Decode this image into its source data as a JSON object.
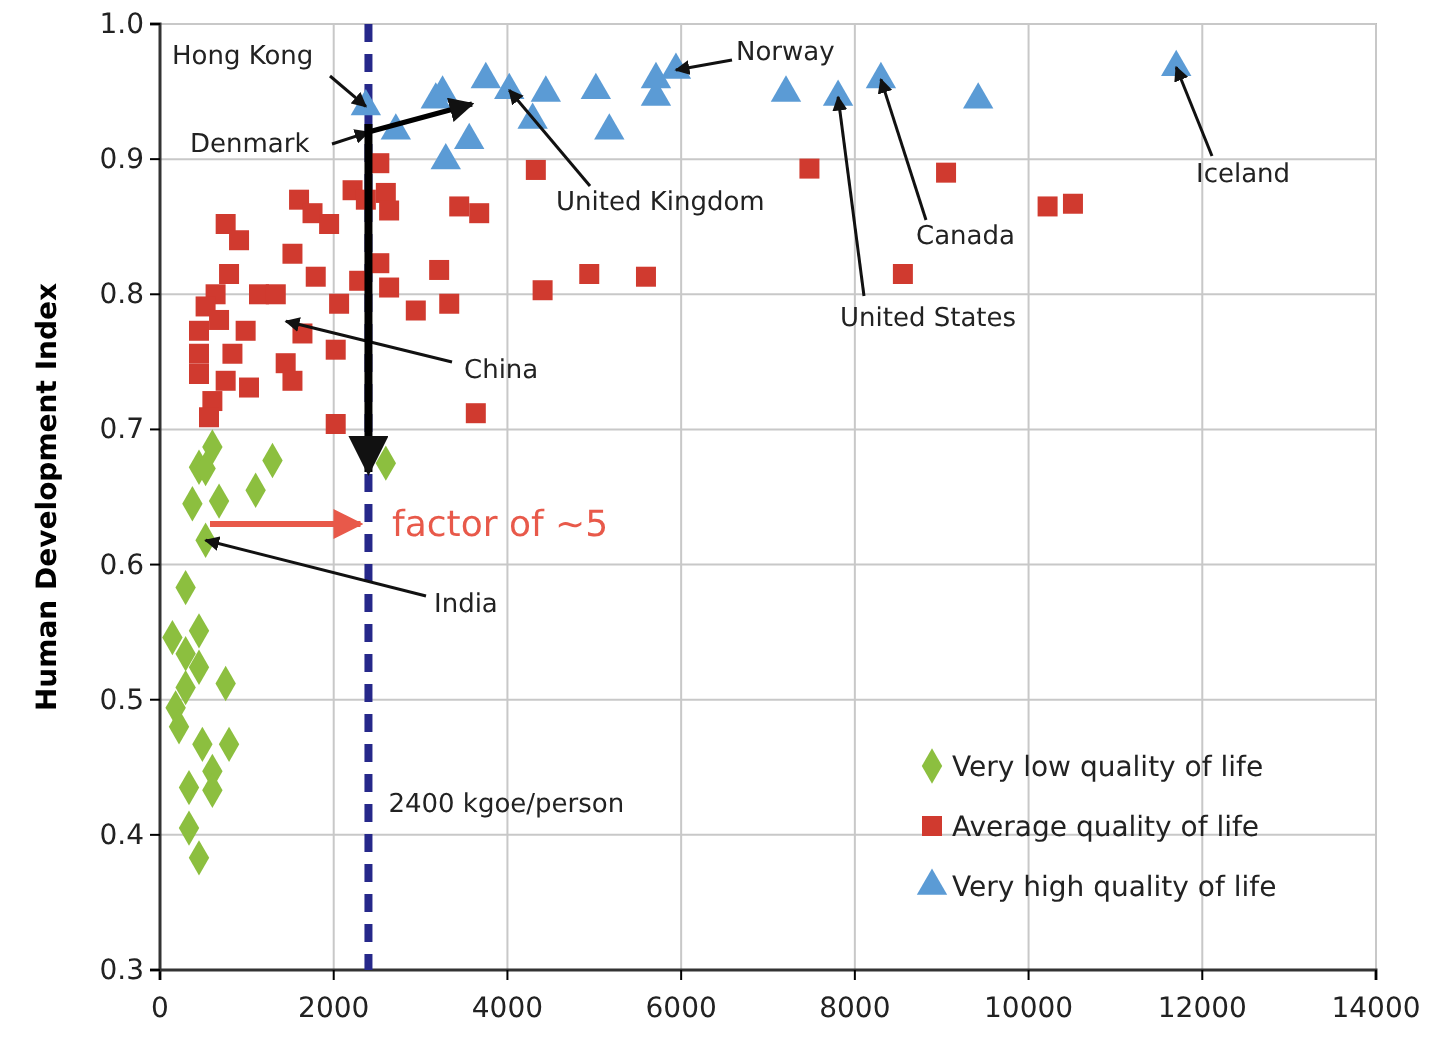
{
  "chart_data": {
    "type": "scatter",
    "ylabel": "Human Development Index",
    "xlim": [
      0,
      14000
    ],
    "xticks": [
      0,
      2000,
      4000,
      6000,
      8000,
      10000,
      12000,
      14000
    ],
    "ylim": [
      0.3,
      1.0
    ],
    "yticks": [
      {
        "value": 0.3,
        "label": "0.3"
      },
      {
        "value": 0.4,
        "label": "0.4"
      },
      {
        "value": 0.5,
        "label": "0.5"
      },
      {
        "value": 0.6,
        "label": "0.6"
      },
      {
        "value": 0.7,
        "label": "0.7"
      },
      {
        "value": 0.8,
        "label": "0.8"
      },
      {
        "value": 0.9,
        "label": "0.9"
      },
      {
        "value": 1.0,
        "label": "1.0"
      }
    ],
    "grid": true,
    "legend": "bottom right",
    "series": [
      {
        "name": "Very low quality of life",
        "color": "#8cbf3f",
        "marker": "diamond",
        "x": [
          603,
          1295,
          449,
          2600,
          525,
          373,
          680,
          1101,
          525,
          295,
          143,
          449,
          295,
          449,
          756,
          295,
          180,
          219,
          488,
          795,
          603,
          334,
          603,
          334,
          449
        ],
        "values": [
          0.687,
          0.677,
          0.672,
          0.675,
          0.671,
          0.645,
          0.647,
          0.655,
          0.618,
          0.583,
          0.546,
          0.551,
          0.534,
          0.524,
          0.512,
          0.509,
          0.494,
          0.48,
          0.467,
          0.467,
          0.447,
          0.435,
          0.433,
          0.405,
          0.383
        ]
      },
      {
        "name": "Average quality of life",
        "color": "#d03a2f",
        "marker": "square",
        "x": [
          2525,
          2217,
          2370,
          2600,
          2638,
          1601,
          1756,
          1947,
          756,
          910,
          3445,
          3675,
          4327,
          1525,
          1793,
          795,
          2525,
          2293,
          2638,
          3214,
          2945,
          3330,
          2062,
          4405,
          4942,
          5595,
          1140,
          1333,
          640,
          525,
          680,
          449,
          986,
          1640,
          2023,
          449,
          834,
          1447,
          449,
          756,
          1525,
          1025,
          603,
          564,
          3636,
          2023,
          7477,
          9050,
          10219,
          10511,
          8553
        ],
        "values": [
          0.897,
          0.877,
          0.87,
          0.875,
          0.862,
          0.87,
          0.86,
          0.852,
          0.852,
          0.84,
          0.865,
          0.86,
          0.892,
          0.83,
          0.813,
          0.815,
          0.823,
          0.81,
          0.805,
          0.818,
          0.788,
          0.793,
          0.793,
          0.803,
          0.815,
          0.813,
          0.8,
          0.8,
          0.8,
          0.791,
          0.781,
          0.773,
          0.773,
          0.771,
          0.759,
          0.756,
          0.756,
          0.749,
          0.741,
          0.736,
          0.736,
          0.731,
          0.721,
          0.709,
          0.712,
          0.704,
          0.893,
          0.89,
          0.865,
          0.867,
          0.815
        ]
      },
      {
        "name": "Very high quality of life",
        "color": "#5b9bd5",
        "marker": "triangle",
        "x": [
          2370,
          2715,
          3175,
          3253,
          3290,
          3560,
          3751,
          4021,
          4290,
          4442,
          5018,
          5173,
          5710,
          5710,
          5940,
          7207,
          7807,
          8300,
          9420,
          11700
        ],
        "values": [
          0.939,
          0.921,
          0.944,
          0.949,
          0.899,
          0.914,
          0.959,
          0.951,
          0.929,
          0.949,
          0.951,
          0.921,
          0.946,
          0.959,
          0.966,
          0.949,
          0.946,
          0.959,
          0.944,
          0.968
        ]
      }
    ],
    "ref_lines": [
      {
        "axis": "x",
        "value": 2400,
        "label": "2400 kgoe/person",
        "color": "#26288a",
        "line_style": "dashed"
      }
    ],
    "annotations": [
      {
        "text": "Hong Kong",
        "x": 2370,
        "y": 0.939
      },
      {
        "text": "Denmark",
        "x": 2400,
        "y": 0.92
      },
      {
        "text": "United Kingdom",
        "x": 4021,
        "y": 0.951
      },
      {
        "text": "Norway",
        "x": 5940,
        "y": 0.966
      },
      {
        "text": "United States",
        "x": 7807,
        "y": 0.946
      },
      {
        "text": "Canada",
        "x": 8300,
        "y": 0.959
      },
      {
        "text": "Iceland",
        "x": 11700,
        "y": 0.968
      },
      {
        "text": "China",
        "x": 1450,
        "y": 0.78
      },
      {
        "text": "India",
        "x": 525,
        "y": 0.618
      },
      {
        "text": "factor of ~5",
        "x": 2400,
        "y": 0.63
      }
    ]
  }
}
